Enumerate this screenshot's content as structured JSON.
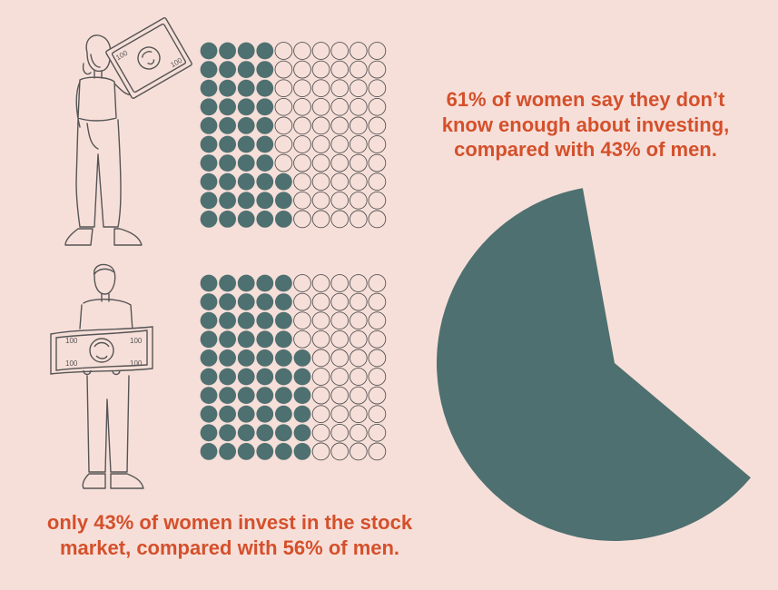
{
  "captions": {
    "pie_caption_lines": [
      "61% of women say they don’t",
      "know enough about investing,",
      "compared with 43% of men."
    ],
    "grid_caption_lines": [
      "only 43% of women invest in the stock",
      "market, compared with 56% of men."
    ]
  },
  "colors": {
    "background": "#f7dfd9",
    "filled": "#4e7070",
    "empty_stroke": "#555555",
    "accent_text": "#d4502b",
    "line_art": "#555555"
  },
  "chart_data": [
    {
      "type": "waffle",
      "group": "women",
      "rows": 10,
      "columns": 10,
      "filled_per_row": [
        4,
        4,
        4,
        4,
        4,
        4,
        4,
        5,
        5,
        5
      ],
      "filled_total": 43,
      "total": 100
    },
    {
      "type": "waffle",
      "group": "men",
      "rows": 10,
      "columns": 10,
      "filled_per_row": [
        5,
        5,
        5,
        5,
        6,
        6,
        6,
        6,
        6,
        6
      ],
      "filled_total": 56,
      "total": 100
    },
    {
      "type": "pie",
      "slices": [
        {
          "value": 61,
          "visible": true
        },
        {
          "value": 39,
          "visible": false
        }
      ]
    }
  ],
  "icons": [
    "woman-holding-banknote-icon",
    "man-holding-banknote-icon"
  ]
}
